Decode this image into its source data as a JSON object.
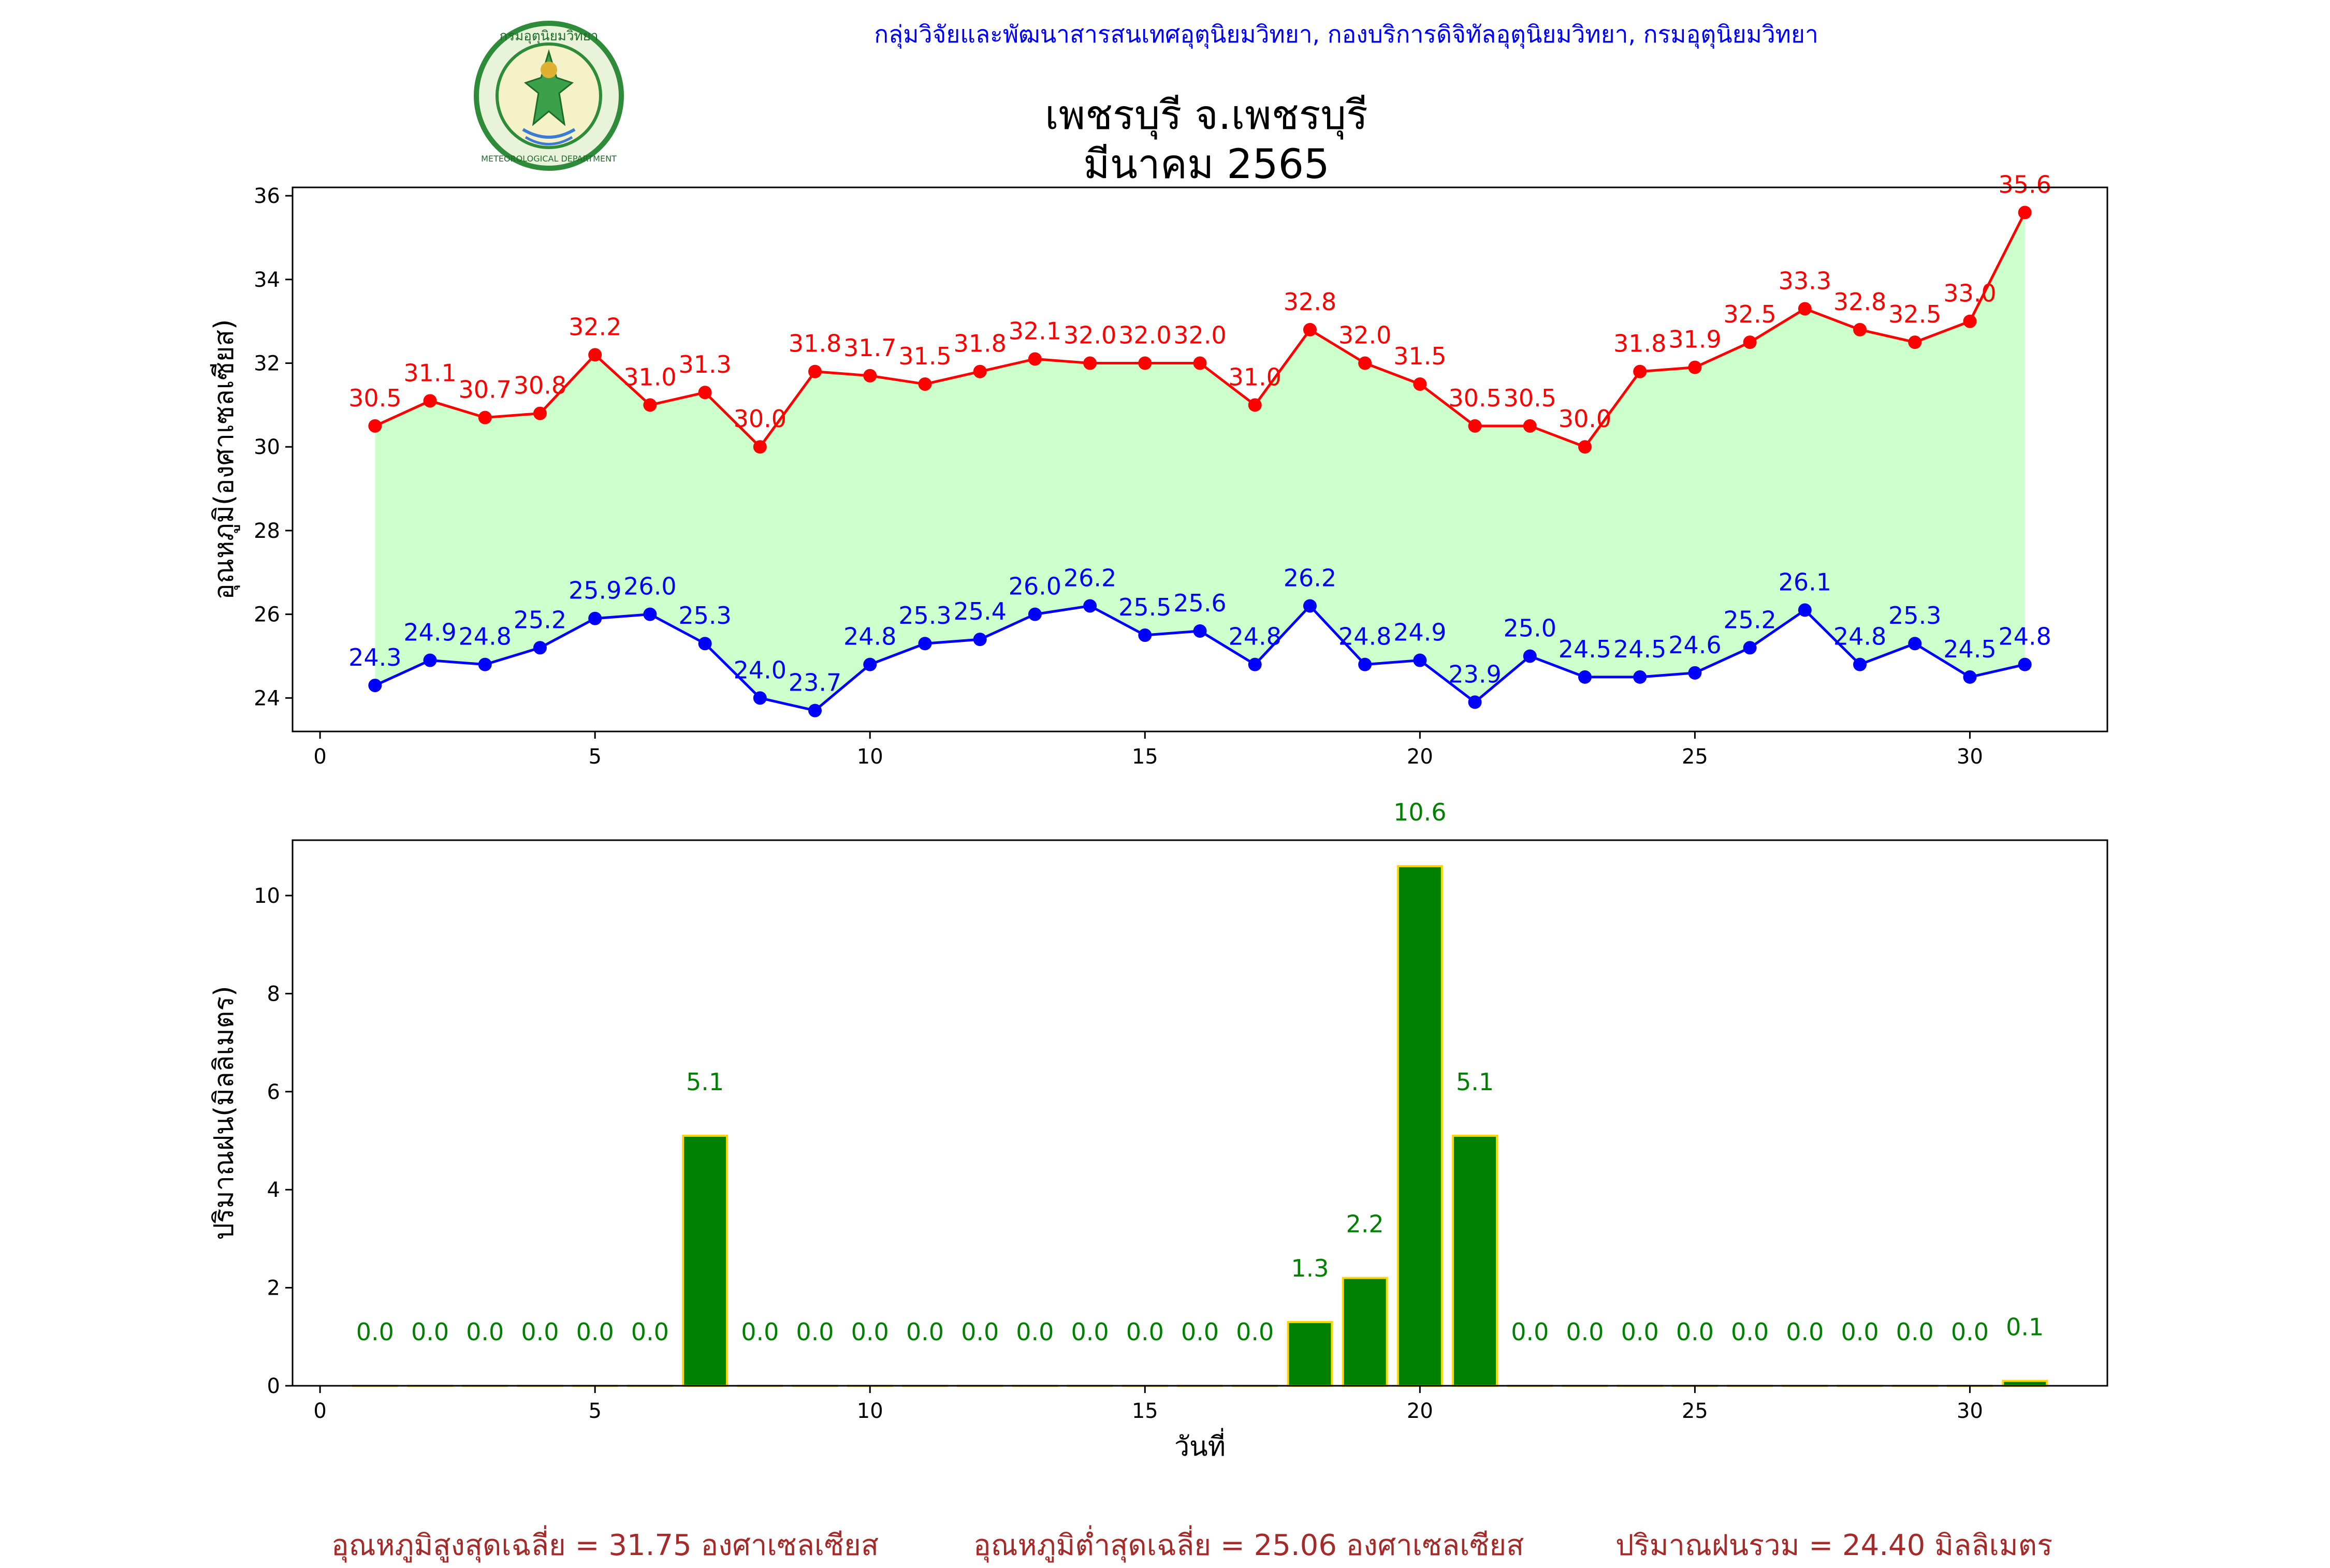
{
  "header": {
    "credit": "กลุ่มวิจัยและพัฒนาสารสนเทศอุตุนิยมวิทยา, กองบริการดิจิทัลอุตุนิยมวิทยา, กรมอุตุนิยมวิทยา",
    "title_line1": "เพชรบุรี จ.เพชรบุรี",
    "title_line2": "มีนาคม 2565",
    "logo": {
      "icon": "meteorological-department-seal-icon",
      "top_text": "กรมอุตุนิยมวิทยา",
      "bottom_text": "METEOROLOGICAL DEPARTMENT",
      "ring_color": "#2e8b3a"
    }
  },
  "chart_data": [
    {
      "type": "line",
      "ylabel": "อุณหภูมิ(องศาเซลเซียส)",
      "xlabel": "",
      "xlim": [
        -0.5,
        32.5
      ],
      "ylim": [
        23.2,
        36.2
      ],
      "xticks": [
        0,
        5,
        10,
        15,
        20,
        25,
        30
      ],
      "yticks": [
        24,
        26,
        28,
        30,
        32,
        34,
        36
      ],
      "fill_between": {
        "color": "#ccffcc"
      },
      "x": [
        1,
        2,
        3,
        4,
        5,
        6,
        7,
        8,
        9,
        10,
        11,
        12,
        13,
        14,
        15,
        16,
        17,
        18,
        19,
        20,
        21,
        22,
        23,
        24,
        25,
        26,
        27,
        28,
        29,
        30,
        31
      ],
      "series": [
        {
          "color": "#ff0000",
          "values": [
            30.5,
            31.1,
            30.7,
            30.8,
            32.2,
            31.0,
            31.3,
            30.0,
            31.8,
            31.7,
            31.5,
            31.8,
            32.1,
            32.0,
            32.0,
            32.0,
            31.0,
            32.8,
            32.0,
            31.5,
            30.5,
            30.5,
            30.0,
            31.8,
            31.9,
            32.5,
            33.3,
            32.8,
            32.5,
            33.0,
            35.6
          ]
        },
        {
          "color": "#0000ff",
          "values": [
            24.3,
            24.9,
            24.8,
            25.2,
            25.9,
            26.0,
            25.3,
            24.0,
            23.7,
            24.8,
            25.3,
            25.4,
            26.0,
            26.2,
            25.5,
            25.6,
            24.8,
            26.2,
            24.8,
            24.9,
            23.9,
            25.0,
            24.5,
            24.5,
            24.6,
            25.2,
            26.1,
            24.8,
            25.3,
            24.5,
            24.8
          ]
        }
      ]
    },
    {
      "type": "bar",
      "ylabel": "ปริมาณฝน(มิลลิเมตร)",
      "xlabel": "วันที่",
      "xlim": [
        -0.5,
        32.5
      ],
      "ylim": [
        0,
        11.13
      ],
      "xticks": [
        0,
        5,
        10,
        15,
        20,
        25,
        30
      ],
      "yticks": [
        0,
        2,
        4,
        6,
        8,
        10
      ],
      "bar_color": "#008000",
      "edge_color": "#ffd700",
      "label_color": "#008000",
      "x": [
        1,
        2,
        3,
        4,
        5,
        6,
        7,
        8,
        9,
        10,
        11,
        12,
        13,
        14,
        15,
        16,
        17,
        18,
        19,
        20,
        21,
        22,
        23,
        24,
        25,
        26,
        27,
        28,
        29,
        30,
        31
      ],
      "values": [
        0.0,
        0.0,
        0.0,
        0.0,
        0.0,
        0.0,
        5.1,
        0.0,
        0.0,
        0.0,
        0.0,
        0.0,
        0.0,
        0.0,
        0.0,
        0.0,
        0.0,
        1.3,
        2.2,
        10.6,
        5.1,
        0.0,
        0.0,
        0.0,
        0.0,
        0.0,
        0.0,
        0.0,
        0.0,
        0.0,
        0.1
      ]
    }
  ],
  "footer": {
    "avg_max": "อุณหภูมิสูงสุดเฉลี่ย = 31.75 องศาเซลเซียส",
    "avg_min": "อุณหภูมิต่ำสุดเฉลี่ย = 25.06 องศาเซลเซียส",
    "total_rain": "ปริมาณฝนรวม = 24.40 มิลลิเมตร"
  }
}
